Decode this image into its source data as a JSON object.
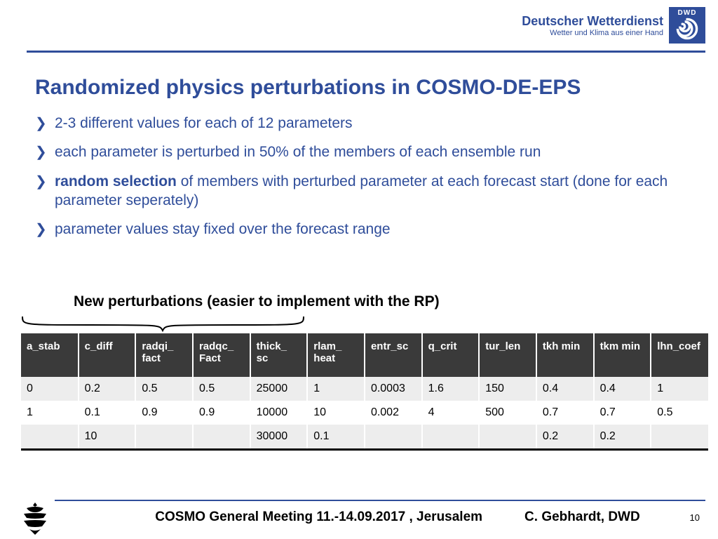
{
  "logo": {
    "title": "Deutscher Wetterdienst",
    "subtitle": "Wetter und Klima aus einer Hand",
    "badge_text": "DWD",
    "brand_color": "#2f4d9a"
  },
  "title": "Randomized physics perturbations in COSMO-DE-EPS",
  "bullets": [
    {
      "html": "2-3 different values for each of 12 parameters"
    },
    {
      "html": "each parameter is perturbed in 50% of the members of each ensemble run"
    },
    {
      "html": "<b>random selection</b> of members with perturbed parameter at each forecast start (done for each parameter seperately)"
    },
    {
      "html": "parameter values stay fixed over the forecast range"
    }
  ],
  "brace_label": "New perturbations (easier to  implement with the RP)",
  "table": {
    "header_bg": "#3a3a3a",
    "header_fg": "#ffffff",
    "row_odd_bg": "#ededed",
    "row_even_bg": "#ffffff",
    "columns": [
      "a_stab",
      "c_diff",
      "radqi_ fact",
      "radqc_ Fact",
      "thick_ sc",
      "rlam_ heat",
      "entr_sc",
      "q_crit",
      "tur_len",
      "tkh min",
      "tkm min",
      "lhn_coef"
    ],
    "rows": [
      [
        "0",
        "0.2",
        "0.5",
        "0.5",
        "25000",
        "1",
        "0.0003",
        "1.6",
        "150",
        "0.4",
        "0.4",
        "1"
      ],
      [
        "1",
        "0.1",
        "0.9",
        "0.9",
        "10000",
        "10",
        "0.002",
        "4",
        "500",
        "0.7",
        "0.7",
        "0.5"
      ],
      [
        "",
        "10",
        "",
        "",
        "30000",
        "0.1",
        "",
        "",
        "",
        "0.2",
        "0.2",
        ""
      ]
    ]
  },
  "footer": {
    "meeting": "COSMO General Meeting  11.-14.09.2017 , Jerusalem",
    "author": "C. Gebhardt, DWD",
    "page": "10"
  }
}
